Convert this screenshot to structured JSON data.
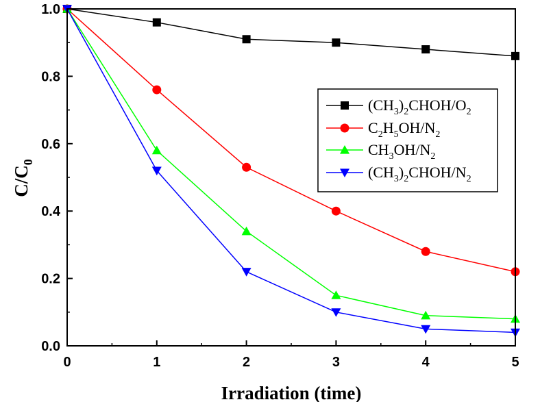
{
  "chart_data": {
    "type": "line",
    "title": "",
    "xlabel": "Irradiation (time)",
    "ylabel": {
      "main": "C/C",
      "sub": "0"
    },
    "x": [
      0,
      1,
      2,
      3,
      4,
      5
    ],
    "xlim": [
      0,
      5
    ],
    "ylim": [
      0,
      1.0
    ],
    "xticks": [
      "0",
      "1",
      "2",
      "3",
      "4",
      "5"
    ],
    "yticks": [
      "0.0",
      "0.2",
      "0.4",
      "0.6",
      "0.8",
      "1.0"
    ],
    "grid": false,
    "legend_position": "center-right",
    "series": [
      {
        "name": "(CH3)2CHOH/O2",
        "label_parts": [
          [
            "(CH",
            ""
          ],
          [
            "3",
            "sub"
          ],
          [
            ")",
            ""
          ],
          [
            "2",
            "sub"
          ],
          [
            "CHOH/O",
            ""
          ],
          [
            "2",
            "sub"
          ]
        ],
        "color": "#000000",
        "marker": "square",
        "values": [
          1.0,
          0.96,
          0.91,
          0.9,
          0.88,
          0.86
        ]
      },
      {
        "name": "C2H5OH/N2",
        "label_parts": [
          [
            "C",
            ""
          ],
          [
            "2",
            "sub"
          ],
          [
            "H",
            ""
          ],
          [
            "5",
            "sub"
          ],
          [
            "OH/N",
            ""
          ],
          [
            "2",
            "sub"
          ]
        ],
        "color": "#ff0000",
        "marker": "circle",
        "values": [
          1.0,
          0.76,
          0.53,
          0.4,
          0.28,
          0.22
        ]
      },
      {
        "name": "CH3OH/N2",
        "label_parts": [
          [
            "CH",
            ""
          ],
          [
            "3",
            "sub"
          ],
          [
            "OH/N",
            ""
          ],
          [
            "2",
            "sub"
          ]
        ],
        "color": "#00ff00",
        "marker": "triangle-up",
        "values": [
          1.0,
          0.58,
          0.34,
          0.15,
          0.09,
          0.08
        ]
      },
      {
        "name": "(CH3)2CHOH/N2",
        "label_parts": [
          [
            "(CH",
            ""
          ],
          [
            "3",
            "sub"
          ],
          [
            ")",
            ""
          ],
          [
            "2",
            "sub"
          ],
          [
            "CHOH/N",
            ""
          ],
          [
            "2",
            "sub"
          ]
        ],
        "color": "#0000ff",
        "marker": "triangle-down",
        "values": [
          1.0,
          0.52,
          0.22,
          0.1,
          0.05,
          0.04
        ]
      }
    ]
  }
}
